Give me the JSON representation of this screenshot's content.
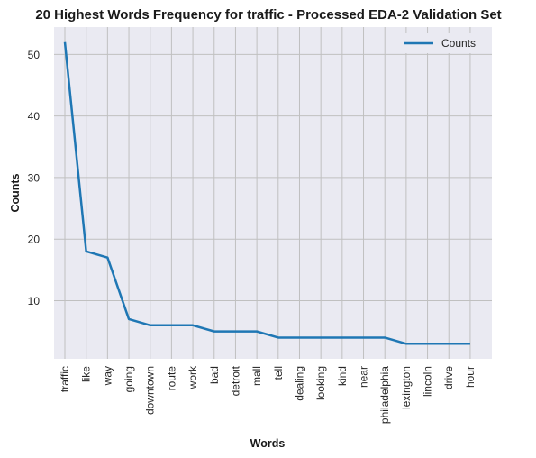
{
  "chart_data": {
    "type": "line",
    "title": "20 Highest Words Frequency for traffic - Processed EDA-2 Validation Set",
    "xlabel": "Words",
    "ylabel": "Counts",
    "categories": [
      "traffic",
      "like",
      "way",
      "going",
      "downtown",
      "route",
      "work",
      "bad",
      "detroit",
      "mall",
      "tell",
      "dealing",
      "looking",
      "kind",
      "near",
      "philadelphia",
      "lexington",
      "lincoln",
      "drive",
      "hour"
    ],
    "series": [
      {
        "name": "Counts",
        "values": [
          52,
          18,
          17,
          7,
          6,
          6,
          6,
          5,
          5,
          5,
          4,
          4,
          4,
          4,
          4,
          4,
          3,
          3,
          3,
          3
        ]
      }
    ],
    "y_ticks": [
      10,
      20,
      30,
      40,
      50
    ],
    "ylim": [
      0.55,
      54.45
    ],
    "grid": true,
    "legend_position": "top-right",
    "colors": {
      "background": "#eaeaf2",
      "grid": "#c0c0c0",
      "line": "#1f77b4"
    }
  }
}
